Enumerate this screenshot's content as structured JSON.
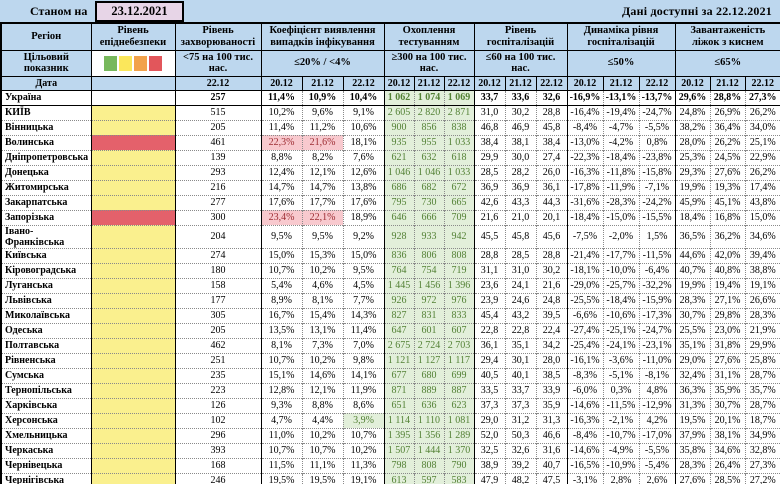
{
  "titlebar": {
    "left_label": "Станом на",
    "left_date": "23.12.2021",
    "right_label": "Дані доступні за  22.12.2021"
  },
  "colors": {
    "header_bg": "#BDD7EE",
    "datebox_bg": "#E7D5E7",
    "danger": {
      "yellow": "#FAF08E",
      "red": "#E4616B"
    },
    "hl_red_bg": "#F8C9CE",
    "hl_red_text": "#9C2B31",
    "hl_green_bg": "#E2EFDA",
    "hl_green_text": "#538135",
    "testing_bg": "#E2EFDA",
    "testing_text": "#538135"
  },
  "header": {
    "region": "Регіон",
    "target_label": "Цільовий показник",
    "date_label": "Дата",
    "danger_swatches": [
      {
        "name": "green",
        "color": "#77B85C"
      },
      {
        "name": "yellow",
        "color": "#FBE75B"
      },
      {
        "name": "orange",
        "color": "#F2A24B"
      },
      {
        "name": "red",
        "color": "#E2565B"
      }
    ],
    "groups": [
      {
        "title": "Рівень епіднебезпеки",
        "target": "",
        "dates": []
      },
      {
        "title": "Рівень захворюваності",
        "target": "<75 на 100 тис. нас.",
        "dates": [
          "22.12"
        ]
      },
      {
        "title": "Коефіцієнт виявлення випадків інфікування",
        "target": "≤20% / <4%",
        "dates": [
          "20.12",
          "21.12",
          "22.12"
        ]
      },
      {
        "title": "Охоплення тестуванням",
        "target": "≥300 на 100 тис. нас.",
        "dates": [
          "20.12",
          "21.12",
          "22.12"
        ]
      },
      {
        "title": "Рівень госпіталізацій",
        "target": "≤60 на 100 тис. нас.",
        "dates": [
          "20.12",
          "21.12",
          "22.12"
        ]
      },
      {
        "title": "Динаміка рівня госпіталізацій",
        "target": "≤50%",
        "dates": [
          "20.12",
          "21.12",
          "22.12"
        ]
      },
      {
        "title": "Завантаженість ліжок з киснем",
        "target": "≤65%",
        "dates": [
          "20.12",
          "21.12",
          "22.12"
        ]
      }
    ]
  },
  "rows": [
    {
      "region": "Україна",
      "bold": true,
      "danger": "none",
      "morbidity": "257",
      "detection": [
        "11,4%",
        "10,9%",
        "10,4%"
      ],
      "testing": [
        "1 062",
        "1 074",
        "1 069"
      ],
      "hospitalization": [
        "33,7",
        "33,6",
        "32,6"
      ],
      "dynamics": [
        "-16,9%",
        "-13,1%",
        "-13,7%"
      ],
      "oxygen": [
        "29,6%",
        "28,8%",
        "27,3%"
      ]
    },
    {
      "region": "КИЇВ",
      "danger": "yellow",
      "morbidity": "515",
      "detection": [
        "10,2%",
        "9,6%",
        "9,1%"
      ],
      "testing": [
        "2 605",
        "2 820",
        "2 871"
      ],
      "hospitalization": [
        "31,0",
        "30,2",
        "28,8"
      ],
      "dynamics": [
        "-16,4%",
        "-19,4%",
        "-24,7%"
      ],
      "oxygen": [
        "24,8%",
        "26,9%",
        "26,2%"
      ]
    },
    {
      "region": "Вінницька",
      "danger": "yellow",
      "morbidity": "205",
      "detection": [
        "11,4%",
        "11,2%",
        "10,6%"
      ],
      "testing": [
        "900",
        "856",
        "838"
      ],
      "hospitalization": [
        "46,8",
        "46,9",
        "45,8"
      ],
      "dynamics": [
        "-8,4%",
        "-4,7%",
        "-5,5%"
      ],
      "oxygen": [
        "38,2%",
        "36,4%",
        "34,0%"
      ]
    },
    {
      "region": "Волинська",
      "danger": "red",
      "morbidity": "461",
      "detection": [
        "22,3%",
        "21,6%",
        "18,1%"
      ],
      "det_hl": [
        "red",
        "red",
        ""
      ],
      "testing": [
        "935",
        "955",
        "1 033"
      ],
      "hospitalization": [
        "38,4",
        "38,1",
        "38,4"
      ],
      "dynamics": [
        "-13,0%",
        "-4,2%",
        "0,8%"
      ],
      "oxygen": [
        "28,0%",
        "26,2%",
        "25,1%"
      ]
    },
    {
      "region": "Дніпропетровська",
      "danger": "yellow",
      "morbidity": "139",
      "detection": [
        "8,8%",
        "8,2%",
        "7,6%"
      ],
      "testing": [
        "621",
        "632",
        "618"
      ],
      "hospitalization": [
        "29,9",
        "30,0",
        "27,4"
      ],
      "dynamics": [
        "-22,3%",
        "-18,4%",
        "-23,8%"
      ],
      "oxygen": [
        "25,3%",
        "24,5%",
        "22,9%"
      ]
    },
    {
      "region": "Донецька",
      "danger": "yellow",
      "morbidity": "293",
      "detection": [
        "12,4%",
        "12,1%",
        "12,6%"
      ],
      "testing": [
        "1 046",
        "1 046",
        "1 033"
      ],
      "hospitalization": [
        "28,5",
        "28,2",
        "26,0"
      ],
      "dynamics": [
        "-16,3%",
        "-11,8%",
        "-15,8%"
      ],
      "oxygen": [
        "29,3%",
        "27,6%",
        "26,2%"
      ]
    },
    {
      "region": "Житомирська",
      "danger": "yellow",
      "morbidity": "216",
      "detection": [
        "14,7%",
        "14,7%",
        "13,8%"
      ],
      "testing": [
        "686",
        "682",
        "672"
      ],
      "hospitalization": [
        "36,9",
        "36,9",
        "36,1"
      ],
      "dynamics": [
        "-17,8%",
        "-11,9%",
        "-7,1%"
      ],
      "oxygen": [
        "19,9%",
        "19,3%",
        "17,4%"
      ]
    },
    {
      "region": "Закарпатська",
      "danger": "yellow",
      "morbidity": "277",
      "detection": [
        "17,6%",
        "17,7%",
        "17,6%"
      ],
      "testing": [
        "795",
        "730",
        "665"
      ],
      "hospitalization": [
        "42,6",
        "43,3",
        "44,3"
      ],
      "dynamics": [
        "-31,6%",
        "-28,3%",
        "-24,2%"
      ],
      "oxygen": [
        "45,9%",
        "45,1%",
        "43,8%"
      ]
    },
    {
      "region": "Запорізька",
      "danger": "red",
      "morbidity": "300",
      "detection": [
        "23,4%",
        "22,1%",
        "18,9%"
      ],
      "det_hl": [
        "red",
        "red",
        ""
      ],
      "testing": [
        "646",
        "666",
        "709"
      ],
      "hospitalization": [
        "21,6",
        "21,0",
        "20,1"
      ],
      "dynamics": [
        "-18,4%",
        "-15,0%",
        "-15,5%"
      ],
      "oxygen": [
        "18,4%",
        "16,8%",
        "15,0%"
      ]
    },
    {
      "region": "Івано-Франківська",
      "danger": "yellow",
      "morbidity": "204",
      "detection": [
        "9,5%",
        "9,5%",
        "9,2%"
      ],
      "testing": [
        "928",
        "933",
        "942"
      ],
      "hospitalization": [
        "45,5",
        "45,8",
        "45,6"
      ],
      "dynamics": [
        "-7,5%",
        "-2,0%",
        "1,5%"
      ],
      "oxygen": [
        "36,5%",
        "36,2%",
        "34,6%"
      ]
    },
    {
      "region": "Київська",
      "danger": "yellow",
      "morbidity": "274",
      "detection": [
        "15,0%",
        "15,3%",
        "15,0%"
      ],
      "testing": [
        "836",
        "806",
        "808"
      ],
      "hospitalization": [
        "28,8",
        "28,5",
        "28,8"
      ],
      "dynamics": [
        "-21,4%",
        "-17,7%",
        "-11,5%"
      ],
      "oxygen": [
        "44,6%",
        "42,0%",
        "39,4%"
      ]
    },
    {
      "region": "Кіровоградська",
      "danger": "yellow",
      "morbidity": "180",
      "detection": [
        "10,7%",
        "10,2%",
        "9,5%"
      ],
      "testing": [
        "764",
        "754",
        "719"
      ],
      "hospitalization": [
        "31,1",
        "31,0",
        "30,2"
      ],
      "dynamics": [
        "-18,1%",
        "-10,0%",
        "-6,4%"
      ],
      "oxygen": [
        "40,7%",
        "40,8%",
        "38,8%"
      ]
    },
    {
      "region": "Луганська",
      "danger": "yellow",
      "morbidity": "158",
      "detection": [
        "5,4%",
        "4,6%",
        "4,5%"
      ],
      "testing": [
        "1 445",
        "1 456",
        "1 396"
      ],
      "hospitalization": [
        "23,6",
        "24,1",
        "21,6"
      ],
      "dynamics": [
        "-29,0%",
        "-25,7%",
        "-32,2%"
      ],
      "oxygen": [
        "19,9%",
        "19,4%",
        "19,1%"
      ]
    },
    {
      "region": "Львівська",
      "danger": "yellow",
      "morbidity": "177",
      "detection": [
        "8,9%",
        "8,1%",
        "7,7%"
      ],
      "testing": [
        "926",
        "972",
        "976"
      ],
      "hospitalization": [
        "23,9",
        "24,6",
        "24,8"
      ],
      "dynamics": [
        "-25,5%",
        "-18,4%",
        "-15,9%"
      ],
      "oxygen": [
        "28,3%",
        "27,1%",
        "26,6%"
      ]
    },
    {
      "region": "Миколаївська",
      "danger": "yellow",
      "morbidity": "305",
      "detection": [
        "16,7%",
        "15,4%",
        "14,3%"
      ],
      "testing": [
        "827",
        "831",
        "833"
      ],
      "hospitalization": [
        "45,4",
        "43,2",
        "39,5"
      ],
      "dynamics": [
        "-6,6%",
        "-10,6%",
        "-17,3%"
      ],
      "oxygen": [
        "30,7%",
        "29,8%",
        "28,3%"
      ]
    },
    {
      "region": "Одеська",
      "danger": "yellow",
      "morbidity": "205",
      "detection": [
        "13,5%",
        "13,1%",
        "11,4%"
      ],
      "testing": [
        "647",
        "601",
        "607"
      ],
      "hospitalization": [
        "22,8",
        "22,8",
        "22,4"
      ],
      "dynamics": [
        "-27,4%",
        "-25,1%",
        "-24,7%"
      ],
      "oxygen": [
        "25,5%",
        "23,0%",
        "21,9%"
      ]
    },
    {
      "region": "Полтавська",
      "danger": "yellow",
      "morbidity": "462",
      "detection": [
        "8,1%",
        "7,3%",
        "7,0%"
      ],
      "testing": [
        "2 675",
        "2 724",
        "2 703"
      ],
      "hospitalization": [
        "36,1",
        "35,1",
        "34,2"
      ],
      "dynamics": [
        "-25,4%",
        "-24,1%",
        "-23,1%"
      ],
      "oxygen": [
        "35,1%",
        "31,8%",
        "29,9%"
      ]
    },
    {
      "region": "Рівненська",
      "danger": "yellow",
      "morbidity": "251",
      "detection": [
        "10,7%",
        "10,2%",
        "9,8%"
      ],
      "testing": [
        "1 121",
        "1 127",
        "1 117"
      ],
      "hospitalization": [
        "29,4",
        "30,1",
        "28,0"
      ],
      "dynamics": [
        "-16,1%",
        "-3,6%",
        "-11,0%"
      ],
      "oxygen": [
        "29,0%",
        "27,6%",
        "25,8%"
      ]
    },
    {
      "region": "Сумська",
      "danger": "yellow",
      "morbidity": "235",
      "detection": [
        "15,1%",
        "14,6%",
        "14,1%"
      ],
      "testing": [
        "677",
        "680",
        "699"
      ],
      "hospitalization": [
        "40,5",
        "40,1",
        "38,5"
      ],
      "dynamics": [
        "-8,3%",
        "-5,1%",
        "-8,1%"
      ],
      "oxygen": [
        "32,4%",
        "31,1%",
        "28,7%"
      ]
    },
    {
      "region": "Тернопільська",
      "danger": "yellow",
      "morbidity": "223",
      "detection": [
        "12,8%",
        "12,1%",
        "11,9%"
      ],
      "testing": [
        "871",
        "889",
        "887"
      ],
      "hospitalization": [
        "33,5",
        "33,7",
        "33,9"
      ],
      "dynamics": [
        "-6,0%",
        "0,3%",
        "4,8%"
      ],
      "oxygen": [
        "36,3%",
        "35,9%",
        "35,7%"
      ]
    },
    {
      "region": "Харківська",
      "danger": "yellow",
      "morbidity": "126",
      "detection": [
        "9,3%",
        "8,8%",
        "8,6%"
      ],
      "testing": [
        "651",
        "636",
        "623"
      ],
      "hospitalization": [
        "37,3",
        "37,3",
        "35,9"
      ],
      "dynamics": [
        "-14,6%",
        "-11,5%",
        "-12,9%"
      ],
      "oxygen": [
        "31,3%",
        "30,7%",
        "28,7%"
      ]
    },
    {
      "region": "Херсонська",
      "danger": "yellow",
      "morbidity": "102",
      "detection": [
        "4,7%",
        "4,4%",
        "3,9%"
      ],
      "det_hl": [
        "",
        "",
        "green"
      ],
      "testing": [
        "1 114",
        "1 110",
        "1 081"
      ],
      "hospitalization": [
        "29,0",
        "31,2",
        "31,3"
      ],
      "dynamics": [
        "-16,3%",
        "-2,1%",
        "4,2%"
      ],
      "oxygen": [
        "19,5%",
        "20,1%",
        "18,7%"
      ]
    },
    {
      "region": "Хмельницька",
      "danger": "yellow",
      "morbidity": "296",
      "detection": [
        "11,0%",
        "10,2%",
        "10,7%"
      ],
      "testing": [
        "1 395",
        "1 356",
        "1 289"
      ],
      "hospitalization": [
        "52,0",
        "50,3",
        "46,6"
      ],
      "dynamics": [
        "-8,4%",
        "-10,7%",
        "-17,0%"
      ],
      "oxygen": [
        "37,9%",
        "38,1%",
        "34,9%"
      ]
    },
    {
      "region": "Черкаська",
      "danger": "yellow",
      "morbidity": "393",
      "detection": [
        "10,7%",
        "10,7%",
        "10,2%"
      ],
      "testing": [
        "1 507",
        "1 444",
        "1 370"
      ],
      "hospitalization": [
        "32,5",
        "32,6",
        "31,6"
      ],
      "dynamics": [
        "-14,6%",
        "-4,9%",
        "-5,5%"
      ],
      "oxygen": [
        "35,8%",
        "34,6%",
        "32,8%"
      ]
    },
    {
      "region": "Чернівецька",
      "danger": "yellow",
      "morbidity": "168",
      "detection": [
        "11,5%",
        "11,1%",
        "11,3%"
      ],
      "testing": [
        "798",
        "808",
        "790"
      ],
      "hospitalization": [
        "38,9",
        "39,2",
        "40,7"
      ],
      "dynamics": [
        "-16,5%",
        "-10,9%",
        "-5,4%"
      ],
      "oxygen": [
        "28,3%",
        "26,4%",
        "27,3%"
      ]
    },
    {
      "region": "Чернігівська",
      "danger": "yellow",
      "morbidity": "246",
      "detection": [
        "19,5%",
        "19,5%",
        "19,1%"
      ],
      "testing": [
        "613",
        "597",
        "583"
      ],
      "hospitalization": [
        "47,9",
        "48,2",
        "47,5"
      ],
      "dynamics": [
        "-3,1%",
        "2,8%",
        "2,6%"
      ],
      "oxygen": [
        "27,6%",
        "28,5%",
        "27,2%"
      ]
    }
  ]
}
